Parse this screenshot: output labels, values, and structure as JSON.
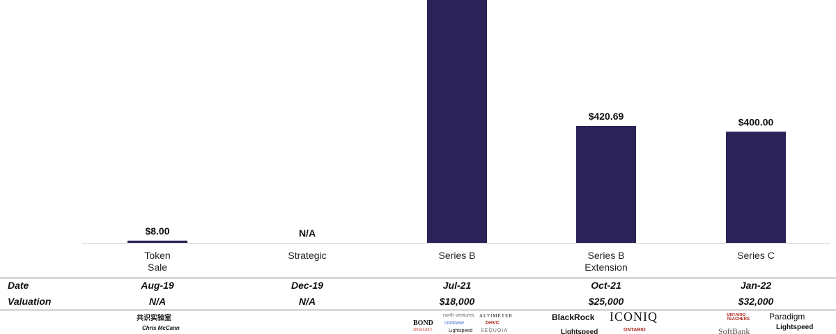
{
  "chart_data": {
    "type": "bar",
    "categories": [
      "Token\nSale",
      "Strategic",
      "Series B",
      "Series B\nExtension",
      "Series C"
    ],
    "values": [
      8.0,
      null,
      null,
      420.69,
      400.0
    ],
    "data_labels": [
      "$8.00",
      "N/A",
      "",
      "$420.69",
      "$400.00"
    ],
    "ylim": [
      0,
      700
    ],
    "bar_color": "#2b2358",
    "grid": false
  },
  "table": {
    "rows": [
      {
        "label": "Date",
        "values": [
          "Aug-19",
          "Dec-19",
          "Jul-21",
          "Oct-21",
          "Jan-22"
        ]
      },
      {
        "label": "Valuation",
        "values": [
          "N/A",
          "N/A",
          "$18,000",
          "$25,000",
          "$32,000"
        ]
      }
    ]
  },
  "logos": {
    "token_sale": [
      "共识实验室",
      "Chris McCann"
    ],
    "series_b": [
      "BOND",
      "INSIGHT",
      "north ventures",
      "coinbase",
      "Lightspeed",
      "ALTIMETER",
      "DHVC",
      "SEQUOIA"
    ],
    "series_b_ext": [
      "BlackRock",
      "ICONIQ",
      "Lightspeed",
      "ONTARIO"
    ],
    "series_c": [
      "ONTARIO TEACHERS",
      "Paradigm",
      "SoftBank",
      "Lightspeed"
    ]
  }
}
